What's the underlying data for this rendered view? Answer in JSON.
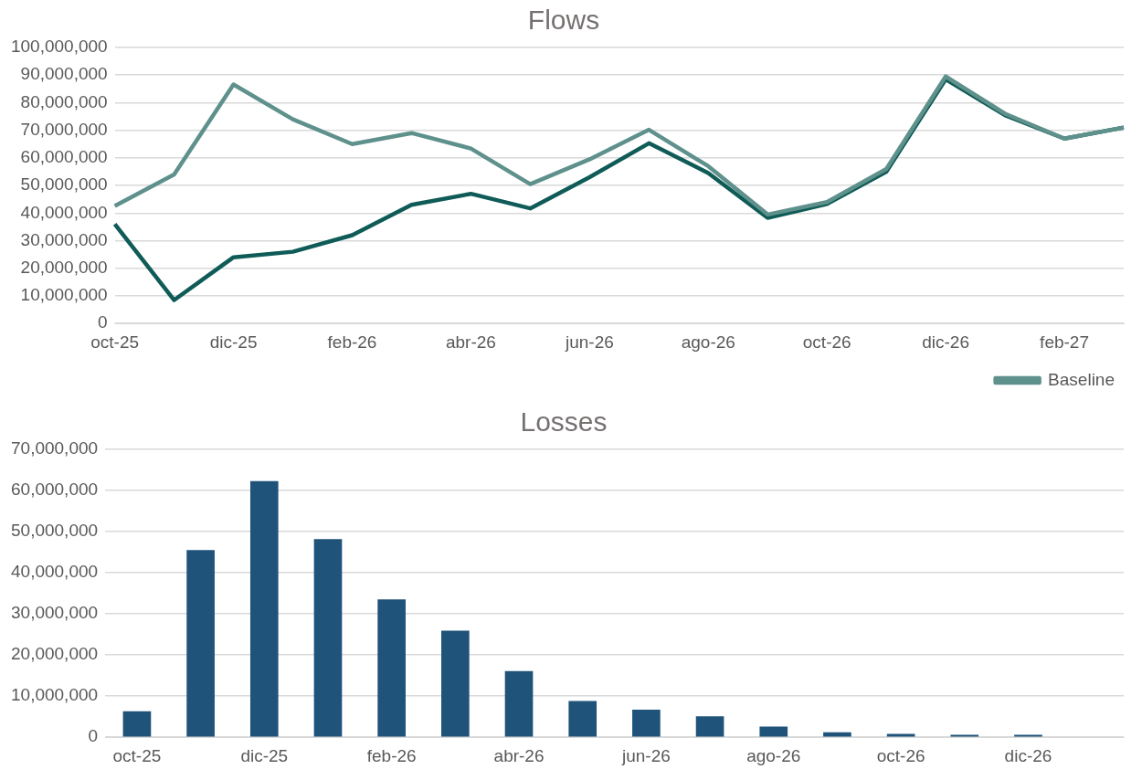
{
  "chart_data": [
    {
      "type": "line",
      "title": "Flows",
      "categories": [
        "oct-25",
        null,
        "dic-25",
        null,
        "feb-26",
        null,
        "abr-26",
        null,
        "jun-26",
        null,
        "ago-26",
        null,
        "oct-26",
        null,
        "dic-26",
        null,
        "feb-27",
        null
      ],
      "series": [
        {
          "name": "Baseline",
          "color": "#5f918c",
          "values": [
            42600000,
            54000000,
            86600000,
            74000000,
            65000000,
            69000000,
            63400000,
            50500000,
            59500000,
            70200000,
            57000000,
            39500000,
            44000000,
            56000000,
            89500000,
            76000000,
            67000000,
            71000000
          ]
        },
        {
          "color": "#0f5b57",
          "values": [
            36000000,
            8500000,
            24000000,
            26000000,
            32000000,
            43000000,
            47000000,
            41700000,
            53000000,
            65300000,
            54500000,
            38300000,
            43300000,
            55000000,
            88500000,
            75500000,
            67000000,
            71000000
          ]
        }
      ],
      "ylim": [
        0,
        100000000
      ],
      "yticks": [
        0,
        {
          "value": 10000000,
          "label": "10,000,000"
        },
        {
          "value": 20000000,
          "label": "20,000,000"
        },
        {
          "value": 30000000,
          "label": "30,000,000"
        },
        {
          "value": 40000000,
          "label": "40,000,000"
        },
        {
          "value": 50000000,
          "label": "50,000,000"
        },
        {
          "value": 60000000,
          "label": "60,000,000"
        },
        {
          "value": 70000000,
          "label": "70,000,000"
        },
        {
          "value": 80000000,
          "label": "80,000,000"
        },
        {
          "value": 90000000,
          "label": "90,000,000"
        },
        {
          "value": 100000000,
          "label": "100,000,000"
        }
      ],
      "grid": "y",
      "legend": "bottom right",
      "marker": "none",
      "line_style": "solid"
    },
    {
      "type": "bar",
      "title": "Losses",
      "categories": [
        "oct-25",
        null,
        "dic-25",
        null,
        "feb-26",
        null,
        "abr-26",
        null,
        "jun-26",
        null,
        "ago-26",
        null,
        "oct-26",
        null,
        "dic-26",
        null
      ],
      "values": [
        6300000,
        45500000,
        62300000,
        48200000,
        33500000,
        25900000,
        16100000,
        8800000,
        6700000,
        5100000,
        2600000,
        1200000,
        800000,
        600000,
        600000,
        null
      ],
      "color": "#1f537a",
      "ylim": [
        0,
        70000000
      ],
      "yticks": [
        0,
        {
          "value": 10000000,
          "label": "10,000,000"
        },
        {
          "value": 20000000,
          "label": "20,000,000"
        },
        {
          "value": 30000000,
          "label": "30,000,000"
        },
        {
          "value": 40000000,
          "label": "40,000,000"
        },
        {
          "value": 50000000,
          "label": "50,000,000"
        },
        {
          "value": 60000000,
          "label": "60,000,000"
        },
        {
          "value": 70000000,
          "label": "70,000,000"
        }
      ],
      "grid": "y"
    }
  ]
}
